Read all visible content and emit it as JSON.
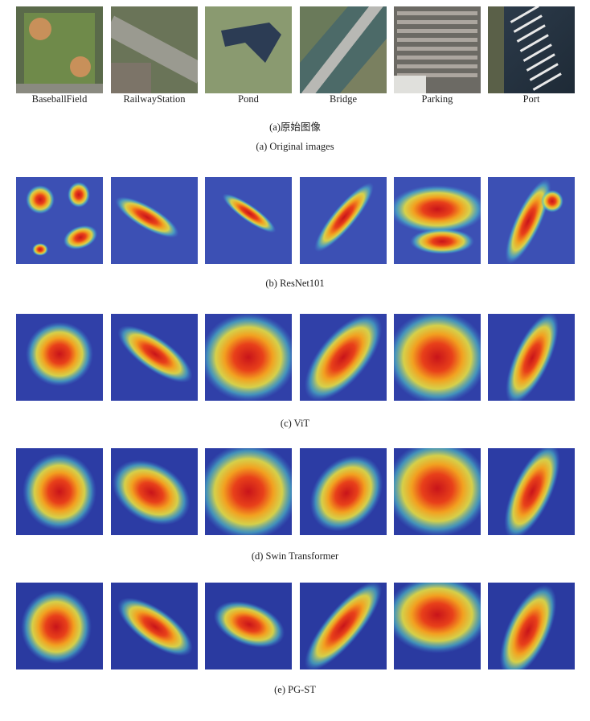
{
  "labels": [
    "BaseballField",
    "RailwayStation",
    "Pond",
    "Bridge",
    "Parking",
    "Port"
  ],
  "captions": [
    "(a)原始图像",
    "(a) Original images",
    "(b) ResNet101",
    "(c) ViT",
    "(d) Swin Transformer",
    "(e) PG-ST"
  ]
}
